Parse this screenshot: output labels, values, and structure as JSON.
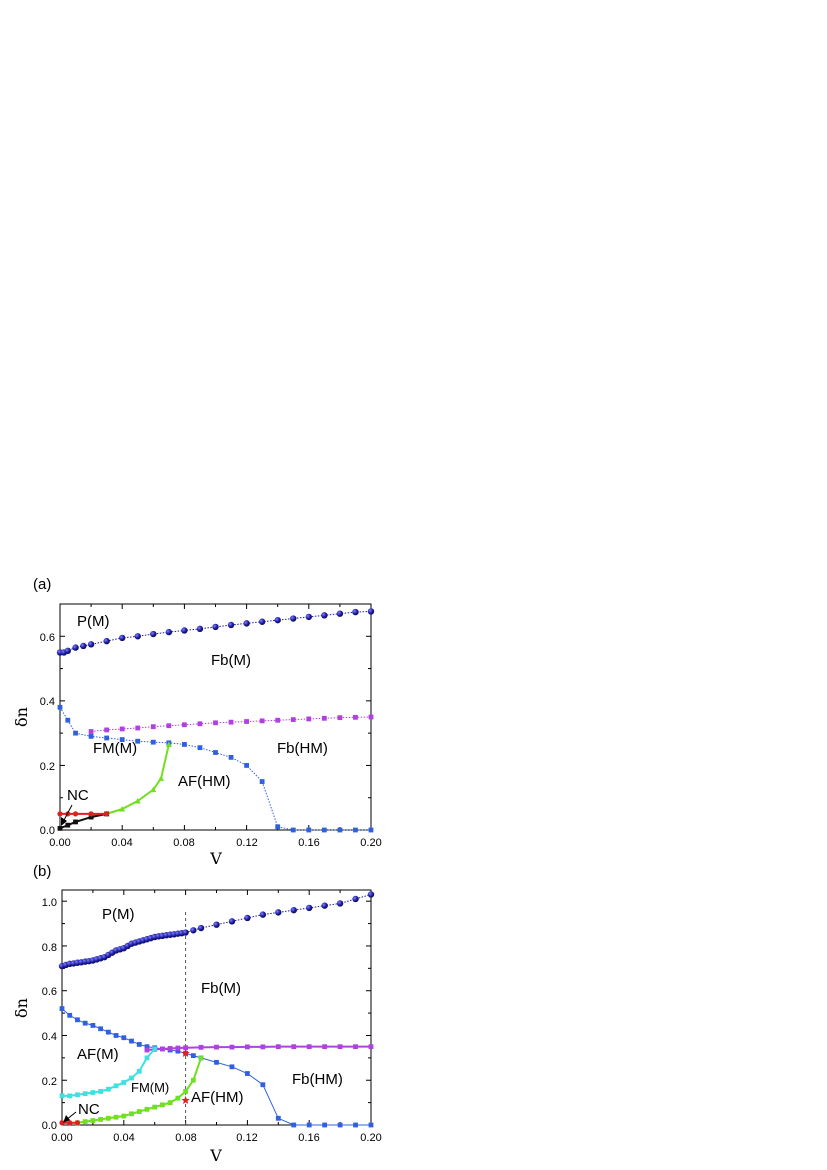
{
  "chart_data": [
    {
      "type": "line",
      "panel_label": "(a)",
      "xlabel": "V",
      "ylabel": "δn",
      "xlim": [
        0,
        0.2
      ],
      "ylim": [
        0,
        0.7
      ],
      "xticks": [
        "0.00",
        "0.04",
        "0.08",
        "0.12",
        "0.16",
        "0.20"
      ],
      "yticks": [
        "0.0",
        "0.2",
        "0.4",
        "0.6"
      ],
      "region_labels": [
        "P(M)",
        "Fb(M)",
        "FM(M)",
        "Fb(HM)",
        "AF(HM)",
        "NC"
      ],
      "series": [
        {
          "color": "#1a1a9e",
          "marker": "circle",
          "line": "dotted",
          "x": [
            0,
            0.0025,
            0.005,
            0.01,
            0.015,
            0.02,
            0.03,
            0.04,
            0.05,
            0.06,
            0.07,
            0.08,
            0.09,
            0.1,
            0.11,
            0.12,
            0.13,
            0.14,
            0.15,
            0.16,
            0.17,
            0.18,
            0.19,
            0.2
          ],
          "y": [
            0.55,
            0.55,
            0.555,
            0.565,
            0.57,
            0.575,
            0.585,
            0.595,
            0.6,
            0.607,
            0.613,
            0.618,
            0.623,
            0.629,
            0.635,
            0.64,
            0.645,
            0.65,
            0.655,
            0.66,
            0.665,
            0.67,
            0.675,
            0.677
          ]
        },
        {
          "color": "#b040e0",
          "marker": "square",
          "line": "dotted",
          "x": [
            0.02,
            0.03,
            0.04,
            0.05,
            0.06,
            0.07,
            0.08,
            0.09,
            0.1,
            0.11,
            0.12,
            0.13,
            0.14,
            0.15,
            0.16,
            0.17,
            0.18,
            0.19,
            0.2
          ],
          "y": [
            0.305,
            0.31,
            0.313,
            0.316,
            0.32,
            0.323,
            0.326,
            0.329,
            0.332,
            0.334,
            0.336,
            0.338,
            0.34,
            0.342,
            0.344,
            0.346,
            0.348,
            0.349,
            0.35
          ]
        },
        {
          "color": "#3060e0",
          "marker": "square",
          "line": "dotted",
          "x": [
            0,
            0.005,
            0.01,
            0.02,
            0.03,
            0.04,
            0.05,
            0.06,
            0.07,
            0.08,
            0.09,
            0.1,
            0.11,
            0.12,
            0.13,
            0.14,
            0.15,
            0.16,
            0.17,
            0.18,
            0.19,
            0.2
          ],
          "y": [
            0.38,
            0.34,
            0.3,
            0.29,
            0.285,
            0.28,
            0.275,
            0.272,
            0.27,
            0.265,
            0.255,
            0.24,
            0.225,
            0.2,
            0.15,
            0.01,
            0,
            0,
            0,
            0,
            0,
            0
          ]
        },
        {
          "color": "#70e020",
          "marker": "triangle",
          "line": "solid",
          "x": [
            0.02,
            0.03,
            0.04,
            0.05,
            0.06,
            0.065,
            0.07
          ],
          "y": [
            0.045,
            0.05,
            0.065,
            0.09,
            0.125,
            0.16,
            0.265
          ]
        },
        {
          "color": "#111111",
          "marker": "square",
          "line": "solid",
          "x": [
            0,
            0.005,
            0.01,
            0.02,
            0.03
          ],
          "y": [
            0.005,
            0.015,
            0.025,
            0.04,
            0.05
          ]
        },
        {
          "color": "#e02020",
          "marker": "circle",
          "line": "solid",
          "x": [
            0,
            0.005,
            0.01,
            0.02,
            0.03
          ],
          "y": [
            0.05,
            0.05,
            0.05,
            0.05,
            0.05
          ]
        }
      ]
    },
    {
      "type": "line",
      "panel_label": "(b)",
      "xlabel": "V",
      "ylabel": "δn",
      "xlim": [
        0,
        0.2
      ],
      "ylim": [
        0,
        1.05
      ],
      "xticks": [
        "0.00",
        "0.04",
        "0.08",
        "0.12",
        "0.16",
        "0.20"
      ],
      "yticks": [
        "0.0",
        "0.2",
        "0.4",
        "0.6",
        "0.8",
        "1.0"
      ],
      "region_labels": [
        "P(M)",
        "Fb(M)",
        "AF(M)",
        "FM(M)",
        "Fb(HM)",
        "AF(HM)",
        "NC"
      ],
      "vertical_line_x": 0.08,
      "stars": [
        {
          "x": 0.08,
          "y": 0.32,
          "color": "#e02020"
        },
        {
          "x": 0.08,
          "y": 0.11,
          "color": "#e02020"
        }
      ],
      "series": [
        {
          "color": "#1a1a9e",
          "marker": "circle",
          "line": "dotted",
          "x": [
            0,
            0.0025,
            0.005,
            0.0075,
            0.01,
            0.0125,
            0.015,
            0.0175,
            0.02,
            0.0225,
            0.025,
            0.0275,
            0.03,
            0.0325,
            0.035,
            0.0375,
            0.04,
            0.0425,
            0.045,
            0.0475,
            0.05,
            0.0525,
            0.055,
            0.0575,
            0.06,
            0.0625,
            0.065,
            0.0675,
            0.07,
            0.0725,
            0.075,
            0.0775,
            0.08,
            0.085,
            0.09,
            0.1,
            0.11,
            0.12,
            0.13,
            0.14,
            0.15,
            0.16,
            0.17,
            0.18,
            0.19,
            0.2
          ],
          "y": [
            0.71,
            0.715,
            0.72,
            0.722,
            0.725,
            0.727,
            0.73,
            0.732,
            0.735,
            0.74,
            0.745,
            0.75,
            0.76,
            0.77,
            0.78,
            0.785,
            0.79,
            0.8,
            0.81,
            0.815,
            0.82,
            0.825,
            0.83,
            0.835,
            0.84,
            0.843,
            0.845,
            0.848,
            0.85,
            0.852,
            0.855,
            0.857,
            0.86,
            0.87,
            0.88,
            0.895,
            0.91,
            0.925,
            0.94,
            0.95,
            0.96,
            0.97,
            0.98,
            0.99,
            1.01,
            1.03
          ]
        },
        {
          "color": "#3060e0",
          "marker": "square",
          "line": "solid",
          "x": [
            0,
            0.005,
            0.01,
            0.015,
            0.02,
            0.025,
            0.03,
            0.035,
            0.04,
            0.045,
            0.05,
            0.055,
            0.06,
            0.065,
            0.07,
            0.075,
            0.08,
            0.085,
            0.09,
            0.1,
            0.11,
            0.12,
            0.13,
            0.14,
            0.15,
            0.16,
            0.17,
            0.18,
            0.19,
            0.2
          ],
          "y": [
            0.52,
            0.49,
            0.47,
            0.455,
            0.445,
            0.43,
            0.415,
            0.4,
            0.39,
            0.375,
            0.36,
            0.35,
            0.345,
            0.34,
            0.335,
            0.33,
            0.32,
            0.31,
            0.3,
            0.28,
            0.26,
            0.23,
            0.18,
            0.03,
            0,
            0,
            0,
            0,
            0,
            0
          ]
        },
        {
          "color": "#b040e0",
          "marker": "square",
          "line": "solid",
          "x": [
            0.055,
            0.06,
            0.065,
            0.07,
            0.075,
            0.08,
            0.09,
            0.1,
            0.11,
            0.12,
            0.13,
            0.14,
            0.15,
            0.16,
            0.17,
            0.18,
            0.19,
            0.2
          ],
          "y": [
            0.335,
            0.338,
            0.34,
            0.342,
            0.344,
            0.345,
            0.347,
            0.348,
            0.348,
            0.349,
            0.349,
            0.35,
            0.35,
            0.35,
            0.35,
            0.35,
            0.35,
            0.35
          ]
        },
        {
          "color": "#40e0e0",
          "marker": "square",
          "line": "solid",
          "x": [
            0,
            0.005,
            0.01,
            0.015,
            0.02,
            0.025,
            0.03,
            0.035,
            0.04,
            0.045,
            0.05,
            0.055,
            0.06
          ],
          "y": [
            0.13,
            0.13,
            0.135,
            0.14,
            0.145,
            0.15,
            0.16,
            0.175,
            0.19,
            0.21,
            0.24,
            0.3,
            0.34
          ]
        },
        {
          "color": "#70e020",
          "marker": "square",
          "line": "solid",
          "x": [
            0.01,
            0.015,
            0.02,
            0.025,
            0.03,
            0.035,
            0.04,
            0.045,
            0.05,
            0.055,
            0.06,
            0.065,
            0.07,
            0.075,
            0.08,
            0.085,
            0.09
          ],
          "y": [
            0.01,
            0.015,
            0.02,
            0.025,
            0.03,
            0.035,
            0.04,
            0.05,
            0.06,
            0.07,
            0.08,
            0.09,
            0.1,
            0.12,
            0.15,
            0.2,
            0.3
          ]
        },
        {
          "color": "#e02020",
          "marker": "circle",
          "line": "solid",
          "x": [
            0,
            0.005,
            0.01
          ],
          "y": [
            0.01,
            0.01,
            0.01
          ]
        }
      ]
    }
  ]
}
